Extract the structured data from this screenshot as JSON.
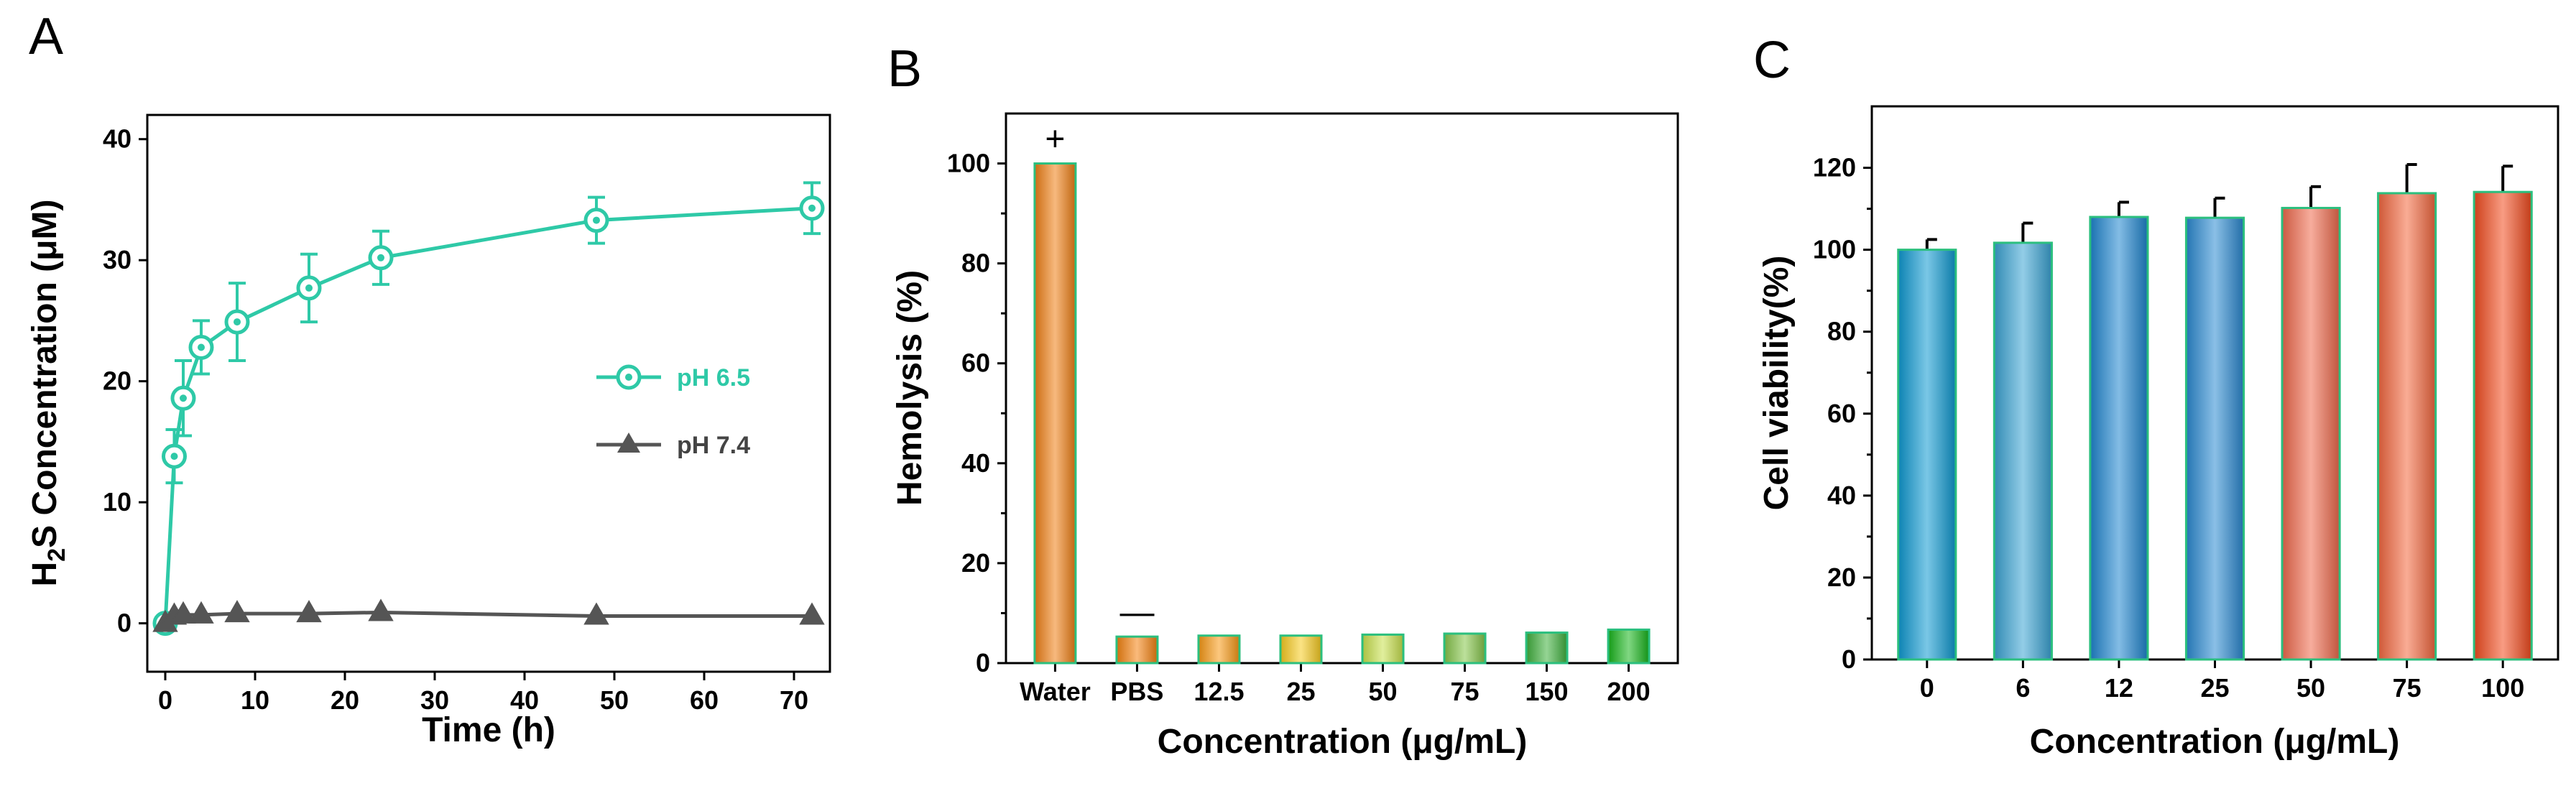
{
  "panels": {
    "A": {
      "label": "A"
    },
    "B": {
      "label": "B"
    },
    "C": {
      "label": "C"
    }
  },
  "chart_data": [
    {
      "panel": "A",
      "type": "line",
      "xlabel": "Time (h)",
      "ylabel_main": "H",
      "ylabel_sub": "2",
      "ylabel_rest": "S Concentration (μM)",
      "xlim": [
        -2,
        74
      ],
      "ylim": [
        -4,
        42
      ],
      "xticks": [
        0,
        10,
        20,
        30,
        40,
        50,
        60,
        70
      ],
      "yticks": [
        0,
        10,
        20,
        30,
        40
      ],
      "legend_position": "center-right",
      "series": [
        {
          "name": "pH 6.5",
          "color": "#2ec9a7",
          "marker": "circle",
          "x": [
            0,
            1,
            2,
            4,
            8,
            16,
            24,
            48,
            72
          ],
          "y": [
            0,
            13.8,
            18.6,
            22.8,
            24.9,
            27.7,
            30.2,
            33.3,
            34.3
          ],
          "err": [
            0.3,
            2.2,
            3.1,
            2.2,
            3.2,
            2.8,
            2.2,
            1.9,
            2.1
          ]
        },
        {
          "name": "pH 7.4",
          "color": "#555555",
          "marker": "triangle",
          "x": [
            0,
            1,
            2,
            4,
            8,
            16,
            24,
            48,
            72
          ],
          "y": [
            0,
            0.6,
            0.7,
            0.7,
            0.8,
            0.8,
            0.9,
            0.6,
            0.6
          ],
          "err": [
            0.1,
            0.2,
            0.2,
            0.2,
            0.2,
            0.2,
            0.2,
            0.2,
            0.2
          ]
        }
      ]
    },
    {
      "panel": "B",
      "type": "bar",
      "xlabel": "Concentration (μg/mL)",
      "ylabel": "Hemolysis (%)",
      "ylim": [
        0,
        110
      ],
      "yticks": [
        0,
        20,
        40,
        60,
        80,
        100
      ],
      "categories": [
        "Water",
        "PBS",
        "12.5",
        "25",
        "50",
        "75",
        "150",
        "200"
      ],
      "values": [
        100,
        5.3,
        5.5,
        5.5,
        5.7,
        5.9,
        6.1,
        6.7
      ],
      "colors": [
        "#f07f14",
        "#f5820f",
        "#f99a15",
        "#f8cc20",
        "#c9e24d",
        "#86c64a",
        "#3fb13d",
        "#18b61b"
      ],
      "annotations": [
        {
          "category": "Water",
          "text": "+"
        },
        {
          "category": "PBS",
          "text": "—"
        }
      ]
    },
    {
      "panel": "C",
      "type": "bar",
      "xlabel": "Concentration (μg/mL)",
      "ylabel": "Cell viability(%)",
      "ylim": [
        0,
        135
      ],
      "yticks": [
        0,
        20,
        40,
        60,
        80,
        100,
        120
      ],
      "categories": [
        "0",
        "6",
        "12",
        "25",
        "50",
        "75",
        "100"
      ],
      "values": [
        100,
        101.7,
        108,
        107.8,
        110.2,
        113.8,
        114.1
      ],
      "err": [
        2.5,
        4.8,
        3.6,
        4.8,
        5.2,
        7.0,
        6.3
      ],
      "colors": [
        "#0e9ad2",
        "#3aa4d4",
        "#1e86d0",
        "#2a8ad2",
        "#f06a4c",
        "#f4683f",
        "#f24b1e"
      ]
    }
  ]
}
